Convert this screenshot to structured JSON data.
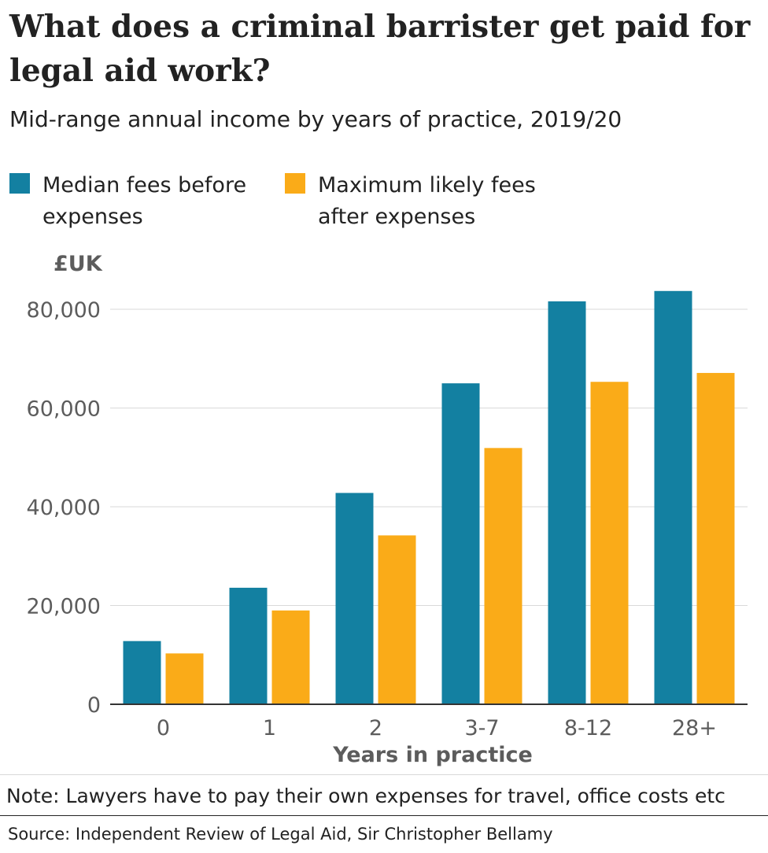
{
  "title": "What does a criminal barrister get paid for legal aid work?",
  "subtitle": "Mid-range annual income by years of practice, 2019/20",
  "note": "Note: Lawyers have to pay their own expenses for travel, office costs etc",
  "source": "Source: Independent Review of Legal Aid, Sir Christopher Bellamy",
  "chart_data": {
    "type": "bar",
    "title": "What does a criminal barrister get paid for legal aid work?",
    "subtitle": "Mid-range annual income by years of practice, 2019/20",
    "xlabel": "Years in practice",
    "ylabel": "£UK",
    "categories": [
      "0",
      "1",
      "2",
      "3-7",
      "8-12",
      "28+"
    ],
    "series": [
      {
        "name": "Median fees before expenses",
        "color": "#1380A1",
        "values": [
          12800,
          23600,
          42800,
          65000,
          81600,
          83700
        ]
      },
      {
        "name": "Maximum likely fees after expenses",
        "color": "#FAAB18",
        "values": [
          10300,
          19000,
          34200,
          51900,
          65300,
          67100
        ]
      }
    ],
    "ylim": [
      0,
      80000
    ],
    "yticks": [
      0,
      20000,
      40000,
      60000,
      80000
    ],
    "ytick_labels": [
      "0",
      "20,000",
      "40,000",
      "60,000",
      "80,000"
    ],
    "grid": true,
    "legend": "top-left"
  }
}
